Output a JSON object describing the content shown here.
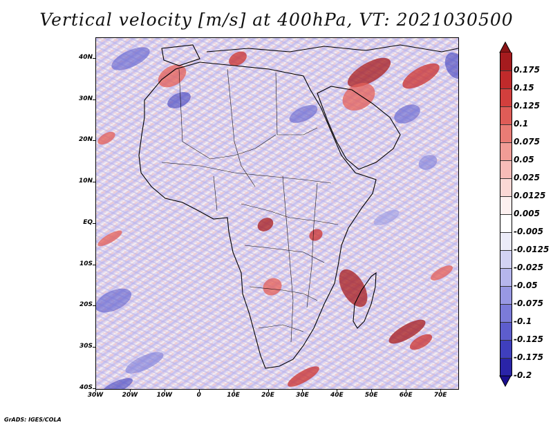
{
  "title": "Vertical velocity [m/s] at 400hPa, VT: 2021030500",
  "credit": "GrADS: IGES/COLA",
  "map": {
    "y_axis": {
      "labels": [
        "40N",
        "30N",
        "20N",
        "10N",
        "EQ",
        "10S",
        "20S",
        "30S",
        "40S"
      ],
      "values": [
        40,
        30,
        20,
        10,
        0,
        -10,
        -20,
        -30,
        -40
      ]
    },
    "x_axis": {
      "labels": [
        "30W",
        "20W",
        "10W",
        "0",
        "10E",
        "20E",
        "30E",
        "40E",
        "50E",
        "60E",
        "70E"
      ],
      "values": [
        -30,
        -20,
        -10,
        0,
        10,
        20,
        30,
        40,
        50,
        60,
        70
      ]
    },
    "lon_range": [
      -30,
      75
    ],
    "lat_range": [
      -40,
      45
    ],
    "field": "vertical velocity",
    "level": "400hPa",
    "valid_time": "2021030500"
  },
  "colorbar": {
    "top_color": "#8a1416",
    "bottom_color": "#1a0f8f",
    "items": [
      {
        "label": "0.175",
        "color": "#a51b1e"
      },
      {
        "label": "0.15",
        "color": "#c02a2b"
      },
      {
        "label": "0.125",
        "color": "#d23f3d"
      },
      {
        "label": "0.1",
        "color": "#df5c57"
      },
      {
        "label": "0.075",
        "color": "#e97c75"
      },
      {
        "label": "0.05",
        "color": "#f19c96"
      },
      {
        "label": "0.025",
        "color": "#f7bcb8"
      },
      {
        "label": "0.0125",
        "color": "#fbd8d5"
      },
      {
        "label": "0.005",
        "color": "#fdf0ef"
      },
      {
        "label": "-0.005",
        "color": "#ffffff"
      },
      {
        "label": "-0.0125",
        "color": "#ececf9"
      },
      {
        "label": "-0.025",
        "color": "#d2d2f3"
      },
      {
        "label": "-0.05",
        "color": "#b6b6ec"
      },
      {
        "label": "-0.075",
        "color": "#9898e3"
      },
      {
        "label": "-0.1",
        "color": "#7b7bd9"
      },
      {
        "label": "-0.125",
        "color": "#5d5dcd"
      },
      {
        "label": "-0.175",
        "color": "#3f3fbd"
      },
      {
        "label": "-0.2",
        "color": "#2a24a8"
      }
    ]
  }
}
